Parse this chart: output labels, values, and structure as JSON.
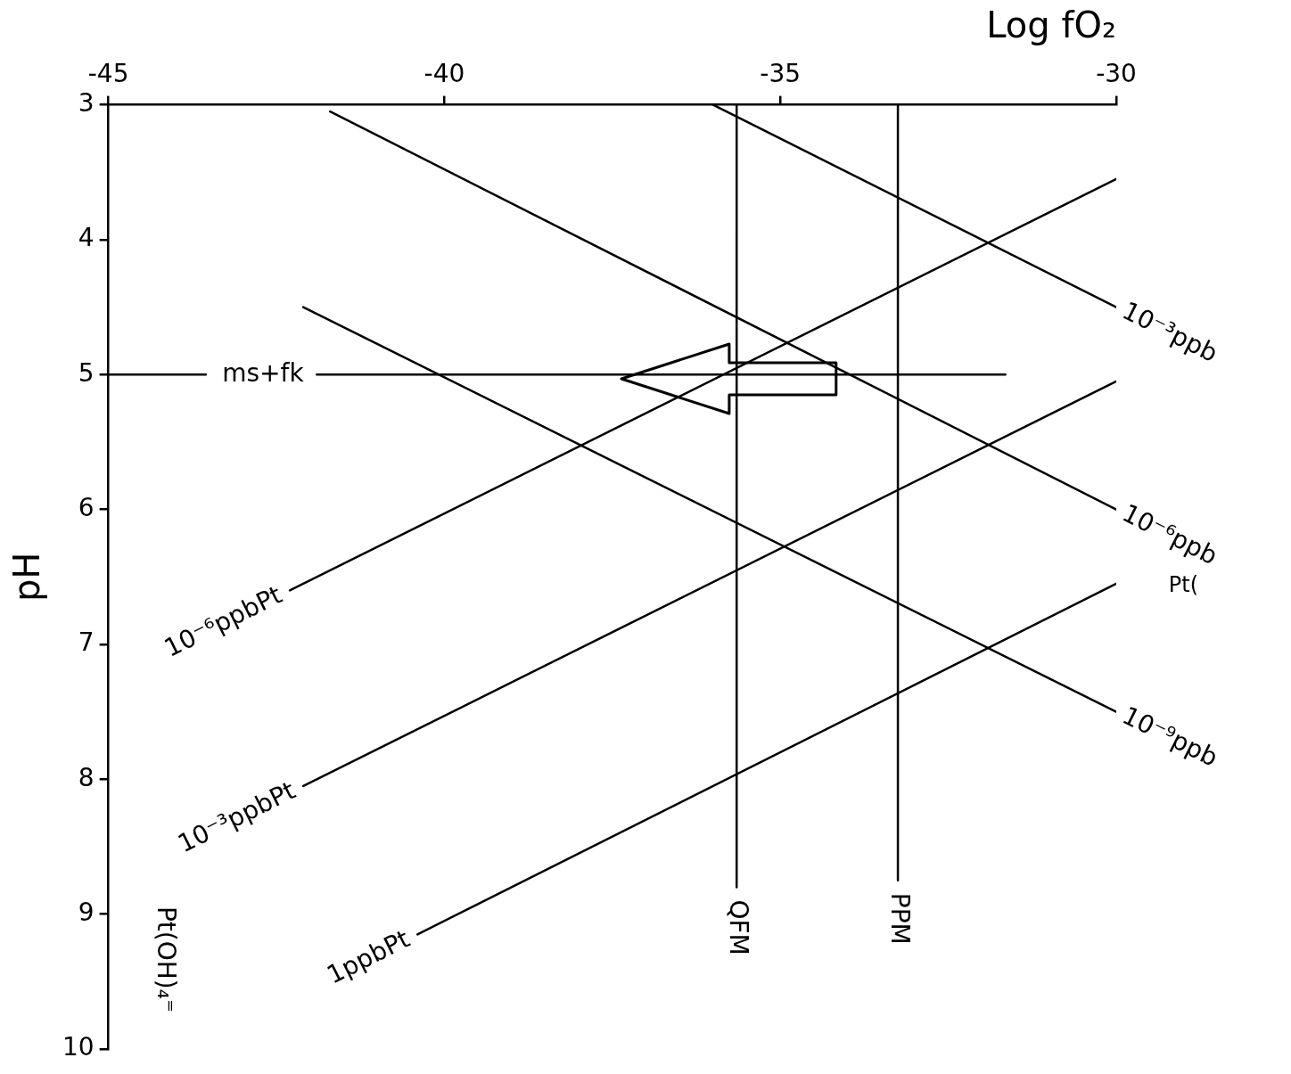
{
  "chart_data": {
    "type": "line",
    "xlabel": "Log fO₂",
    "ylabel": "pH",
    "xlim": [
      -45,
      -30
    ],
    "xticks": [
      -45,
      -40,
      -35,
      -30
    ],
    "ylim": [
      10,
      3
    ],
    "yticks": [
      3,
      4,
      5,
      6,
      7,
      8,
      9,
      10
    ],
    "marker": "none",
    "series": [
      {
        "name": "10⁻³ppb",
        "color": "#000000",
        "x": [
          -36,
          -30
        ],
        "values": [
          3,
          4.5
        ]
      },
      {
        "name": "10⁻⁶ppb",
        "color": "#000000",
        "x": [
          -41.7,
          -30
        ],
        "values": [
          3.05,
          6
        ]
      },
      {
        "name": "10⁻⁹ppb",
        "color": "#000000",
        "x": [
          -42.1,
          -30
        ],
        "values": [
          4.5,
          7.5
        ]
      },
      {
        "name": "10⁻⁶ppbPt",
        "color": "#000000",
        "x": [
          -42.3,
          -30
        ],
        "values": [
          6.6,
          3.55
        ]
      },
      {
        "name": "10⁻³ppbPt",
        "color": "#000000",
        "x": [
          -42.1,
          -30
        ],
        "values": [
          8.05,
          5.05
        ]
      },
      {
        "name": "1ppbPt",
        "color": "#000000",
        "x": [
          -40.4,
          -30
        ],
        "values": [
          9.15,
          6.55
        ]
      },
      {
        "name": "QFM",
        "color": "#000000",
        "x": [
          -35.65,
          -35.65
        ],
        "values": [
          3,
          8.8
        ]
      },
      {
        "name": "PPM",
        "color": "#000000",
        "x": [
          -33.25,
          -33.25
        ],
        "values": [
          3,
          8.75
        ]
      },
      {
        "name": "ms+fk",
        "color": "#000000",
        "x": [
          -45,
          -43.55,
          -42.7,
          -41.9,
          -31.65
        ],
        "values": [
          5,
          5,
          null,
          5,
          5
        ]
      }
    ],
    "annotations": [
      "Pt(OH)₄⁼",
      "Pt("
    ]
  }
}
